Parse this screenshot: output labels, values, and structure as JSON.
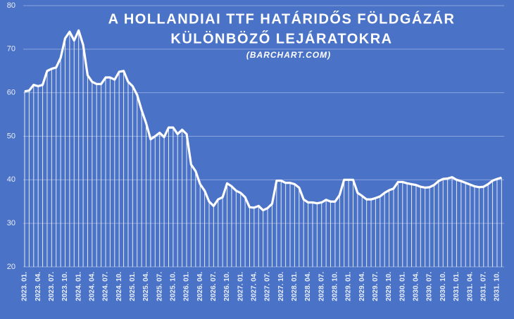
{
  "chart_data": {
    "type": "line",
    "title": [
      "A HOLLANDIAI TTF HATÁRIDŐS FÖLDGÁZÁR",
      "KÜLÖNBÖZŐ LEJÁRATOKRA"
    ],
    "subtitle": "(BARCHART.COM)",
    "categories": [
      "2023. 01.",
      null,
      null,
      "2023. 04.",
      null,
      null,
      "2023. 07.",
      null,
      null,
      "2023. 10.",
      null,
      null,
      "2024. 01.",
      null,
      null,
      "2024. 04.",
      null,
      null,
      "2024. 07.",
      null,
      null,
      "2024. 10.",
      null,
      null,
      "2025. 01.",
      null,
      null,
      "2025. 04.",
      null,
      null,
      "2025. 07.",
      null,
      null,
      "2025. 10.",
      null,
      null,
      "2026. 01.",
      null,
      null,
      "2026. 04.",
      null,
      null,
      "2026. 07.",
      null,
      null,
      "2026. 10.",
      null,
      null,
      "2027. 01.",
      null,
      null,
      "2027. 04.",
      null,
      null,
      "2027. 07.",
      null,
      null,
      "2027. 10.",
      null,
      null,
      "2028. 01.",
      null,
      null,
      "2028. 04.",
      null,
      null,
      "2028. 07.",
      null,
      null,
      "2028. 10.",
      null,
      null,
      "2029. 01.",
      null,
      null,
      "2029. 04.",
      null,
      null,
      "2029. 07.",
      null,
      null,
      "2029. 10.",
      null,
      null,
      "2030. 01.",
      null,
      null,
      "2030. 04.",
      null,
      null,
      "2030. 07.",
      null,
      null,
      "2030. 10.",
      null,
      null,
      "2031. 01.",
      null,
      null,
      "2031. 04.",
      null,
      null,
      "2031. 07.",
      null,
      null,
      "2031. 10.",
      null
    ],
    "values": [
      60.3,
      60.5,
      61.8,
      61.5,
      61.8,
      65,
      65.5,
      65.8,
      68,
      72.5,
      74,
      72,
      74.3,
      71,
      64,
      62.5,
      62,
      62,
      63.5,
      63.5,
      63,
      64.8,
      65,
      62.5,
      61.5,
      59.5,
      56,
      53,
      49.3,
      50,
      50.8,
      49.8,
      52,
      52,
      50.5,
      51.5,
      50.5,
      43.5,
      42,
      39,
      37.5,
      35,
      34,
      35.5,
      36,
      39.2,
      38.5,
      37.5,
      37,
      36,
      33.7,
      33.6,
      34,
      33,
      33.5,
      34.5,
      39.8,
      39.8,
      39.3,
      39.3,
      39,
      38.2,
      35.5,
      34.8,
      34.8,
      34.6,
      34.8,
      35.4,
      35,
      35,
      36.5,
      40,
      40,
      40,
      37,
      36.3,
      35.5,
      35.5,
      35.8,
      36.2,
      37,
      37.6,
      38,
      39.5,
      39.5,
      39.2,
      39,
      38.8,
      38.4,
      38.2,
      38.3,
      38.8,
      39.7,
      40.2,
      40.3,
      40.6,
      40,
      39.7,
      39.3,
      38.9,
      38.5,
      38.3,
      38.4,
      39,
      39.8,
      40.2,
      40.5
    ],
    "color": "#ffffff",
    "ylim": [
      20,
      80
    ],
    "yticks": [
      20,
      30,
      40,
      50,
      60,
      70,
      80
    ],
    "grid": true
  }
}
